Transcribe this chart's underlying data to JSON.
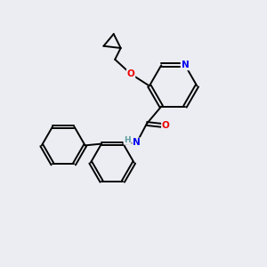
{
  "background_color": "#ebedf2",
  "bond_color": "#000000",
  "atom_colors": {
    "N": "#0000ee",
    "O": "#ee0000",
    "H": "#5f9ea0"
  },
  "figsize": [
    3.0,
    3.0
  ],
  "dpi": 100
}
